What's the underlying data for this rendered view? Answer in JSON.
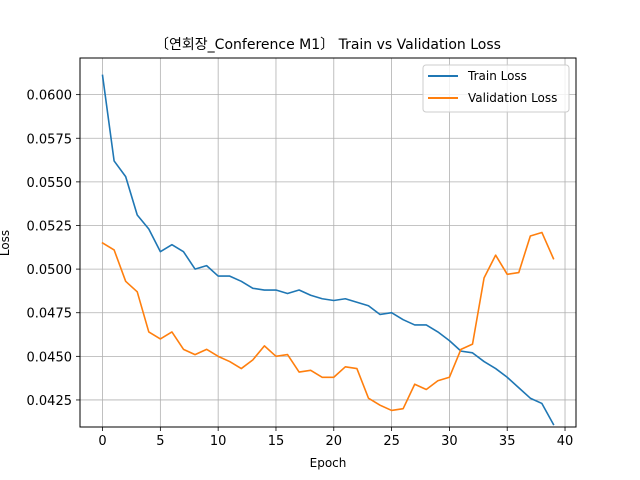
{
  "chart_data": {
    "type": "line",
    "title": "〔연회장_Conference M1〕 Train vs Validation Loss",
    "xlabel": "Epoch",
    "ylabel": "Loss",
    "xlim": [
      -1.95,
      40.95
    ],
    "ylim": [
      0.04095,
      0.0621
    ],
    "xticks": [
      0,
      5,
      10,
      15,
      20,
      25,
      30,
      35,
      40
    ],
    "yticks": [
      0.0425,
      0.045,
      0.0475,
      0.05,
      0.0525,
      0.055,
      0.0575,
      0.06
    ],
    "ytick_labels": [
      "0.0425",
      "0.0450",
      "0.0475",
      "0.0500",
      "0.0525",
      "0.0550",
      "0.0575",
      "0.0600"
    ],
    "grid": true,
    "legend_position": "top-right",
    "x": [
      0,
      1,
      2,
      3,
      4,
      5,
      6,
      7,
      8,
      9,
      10,
      11,
      12,
      13,
      14,
      15,
      16,
      17,
      18,
      19,
      20,
      21,
      22,
      23,
      24,
      25,
      26,
      27,
      28,
      29,
      30,
      31,
      32,
      33,
      34,
      35,
      36,
      37,
      38,
      39
    ],
    "series": [
      {
        "name": "Train Loss",
        "color": "#1f77b4",
        "values": [
          0.0611,
          0.0562,
          0.0553,
          0.0531,
          0.0523,
          0.051,
          0.0514,
          0.051,
          0.05,
          0.0502,
          0.0496,
          0.0496,
          0.0493,
          0.0489,
          0.0488,
          0.0488,
          0.0486,
          0.0488,
          0.0485,
          0.0483,
          0.0482,
          0.0483,
          0.0481,
          0.0479,
          0.0474,
          0.0475,
          0.0471,
          0.0468,
          0.0468,
          0.0464,
          0.0459,
          0.0453,
          0.0452,
          0.0447,
          0.0443,
          0.0438,
          0.0432,
          0.0426,
          0.0423,
          0.0411
        ]
      },
      {
        "name": "Validation Loss",
        "color": "#ff7f0e",
        "values": [
          0.0515,
          0.0511,
          0.0493,
          0.0487,
          0.0464,
          0.046,
          0.0464,
          0.0454,
          0.0451,
          0.0454,
          0.045,
          0.0447,
          0.0443,
          0.0448,
          0.0456,
          0.045,
          0.0451,
          0.0441,
          0.0442,
          0.0438,
          0.0438,
          0.0444,
          0.0443,
          0.0426,
          0.0422,
          0.0419,
          0.042,
          0.0434,
          0.0431,
          0.0436,
          0.0438,
          0.0454,
          0.0457,
          0.0495,
          0.0508,
          0.0497,
          0.0498,
          0.0519,
          0.0521,
          0.0506
        ]
      }
    ]
  }
}
